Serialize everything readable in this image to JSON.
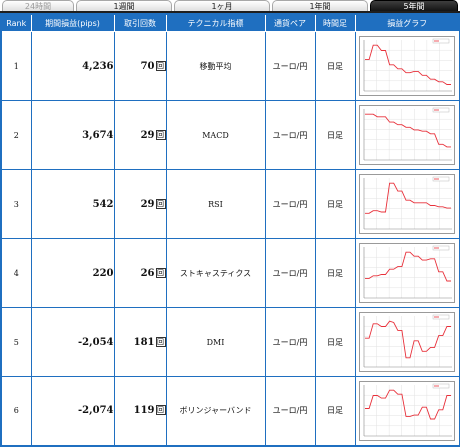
{
  "tabs": [
    {
      "label": "24時間",
      "state": "disabled"
    },
    {
      "label": "1週間",
      "state": "normal"
    },
    {
      "label": "1ヶ月",
      "state": "normal"
    },
    {
      "label": "1年間",
      "state": "normal"
    },
    {
      "label": "5年間",
      "state": "active"
    }
  ],
  "headers": {
    "rank": "Rank",
    "pips": "期間損益(pips)",
    "trades": "取引回数",
    "indicator": "テクニカル指標",
    "pair": "通貨ペア",
    "timeframe": "時間足",
    "graph": "損益グラフ"
  },
  "trade_unit": "回",
  "rows": [
    {
      "rank": "1",
      "pips": "4,236",
      "trades": "70",
      "indicator": "移動平均",
      "pair": "ユーロ/円",
      "timeframe": "日足"
    },
    {
      "rank": "2",
      "pips": "3,674",
      "trades": "29",
      "indicator": "MACD",
      "pair": "ユーロ/円",
      "timeframe": "日足"
    },
    {
      "rank": "3",
      "pips": "542",
      "trades": "29",
      "indicator": "RSI",
      "pair": "ユーロ/円",
      "timeframe": "日足"
    },
    {
      "rank": "4",
      "pips": "220",
      "trades": "26",
      "indicator": "ストキャスティクス",
      "pair": "ユーロ/円",
      "timeframe": "日足"
    },
    {
      "rank": "5",
      "pips": "-2,054",
      "trades": "181",
      "indicator": "DMI",
      "pair": "ユーロ/円",
      "timeframe": "日足"
    },
    {
      "rank": "6",
      "pips": "-2,074",
      "trades": "119",
      "indicator": "ボリンジャーバンド",
      "pair": "ユーロ/円",
      "timeframe": "日足"
    }
  ],
  "graph_line_color": "#e8303a"
}
